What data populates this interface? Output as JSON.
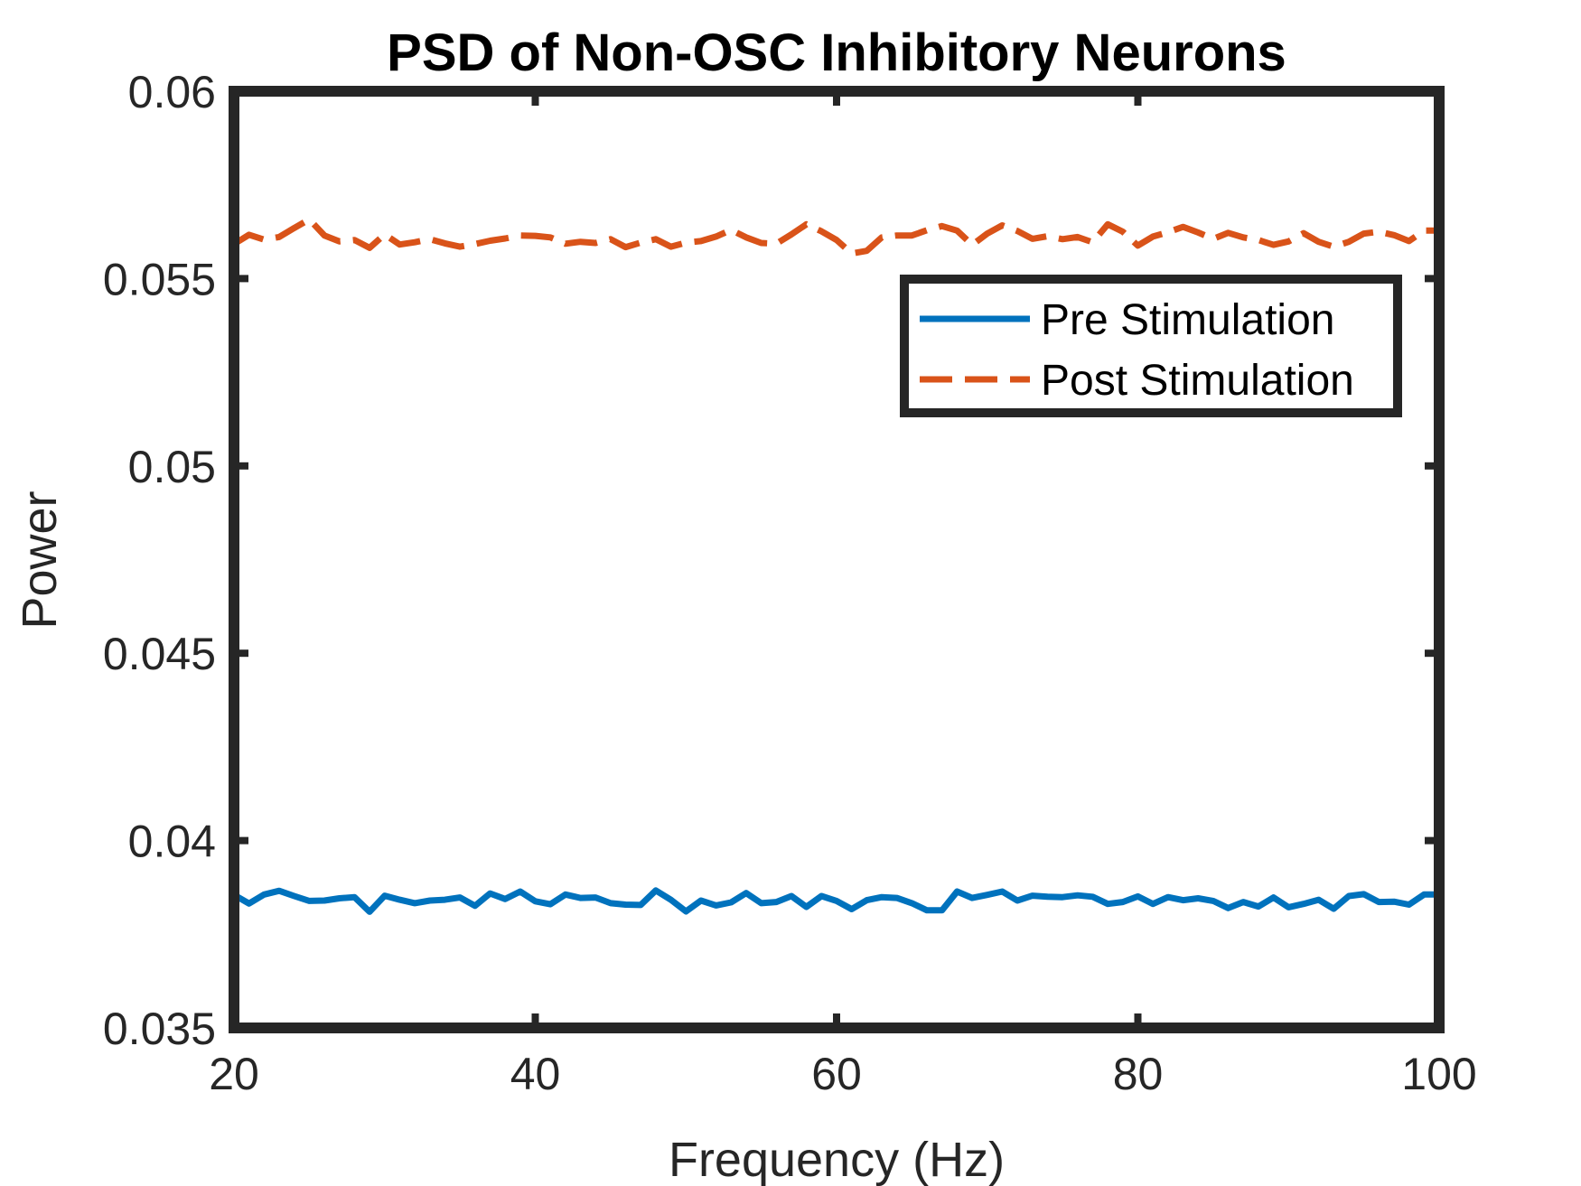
{
  "chart_data": {
    "type": "line",
    "title": "PSD of Non-OSC Inhibitory Neurons",
    "xlabel": "Frequency (Hz)",
    "ylabel": "Power",
    "xlim": [
      20,
      100
    ],
    "ylim": [
      0.035,
      0.06
    ],
    "xticks": [
      20,
      40,
      60,
      80,
      100
    ],
    "xtick_labels": [
      "20",
      "40",
      "60",
      "80",
      "100"
    ],
    "yticks": [
      0.035,
      0.04,
      0.045,
      0.05,
      0.055,
      0.06
    ],
    "ytick_labels": [
      "0.035",
      "0.04",
      "0.045",
      "0.05",
      "0.055",
      "0.06"
    ],
    "grid": false,
    "legend_position": "top-right",
    "x": [
      20,
      21,
      22,
      23,
      24,
      25,
      26,
      27,
      28,
      29,
      30,
      31,
      32,
      33,
      34,
      35,
      36,
      37,
      38,
      39,
      40,
      41,
      42,
      43,
      44,
      45,
      46,
      47,
      48,
      49,
      50,
      51,
      52,
      53,
      54,
      55,
      56,
      57,
      58,
      59,
      60,
      61,
      62,
      63,
      64,
      65,
      66,
      67,
      68,
      69,
      70,
      71,
      72,
      73,
      74,
      75,
      76,
      77,
      78,
      79,
      80,
      81,
      82,
      83,
      84,
      85,
      86,
      87,
      88,
      89,
      90,
      91,
      92,
      93,
      94,
      95,
      96,
      97,
      98,
      99,
      100
    ],
    "series": [
      {
        "name": "Pre Stimulation",
        "color": "#0072BD",
        "style": "solid",
        "values": [
          0.03855,
          0.03832,
          0.03856,
          0.03866,
          0.03852,
          0.03839,
          0.0384,
          0.03846,
          0.03849,
          0.0381,
          0.03853,
          0.03842,
          0.03833,
          0.0384,
          0.03842,
          0.03848,
          0.03826,
          0.03859,
          0.03844,
          0.03864,
          0.03838,
          0.0383,
          0.03856,
          0.03847,
          0.03848,
          0.03833,
          0.03829,
          0.03828,
          0.03867,
          0.03842,
          0.03811,
          0.0384,
          0.03827,
          0.03835,
          0.0386,
          0.03833,
          0.03836,
          0.03852,
          0.03823,
          0.03852,
          0.03839,
          0.03817,
          0.03841,
          0.03849,
          0.03847,
          0.03833,
          0.03814,
          0.03814,
          0.03864,
          0.03847,
          0.03855,
          0.03864,
          0.0384,
          0.03853,
          0.0385,
          0.03849,
          0.03854,
          0.0385,
          0.03831,
          0.03836,
          0.03851,
          0.03831,
          0.03849,
          0.03841,
          0.03846,
          0.03839,
          0.0382,
          0.03836,
          0.03824,
          0.03848,
          0.03822,
          0.03831,
          0.03842,
          0.03818,
          0.03852,
          0.03857,
          0.03836,
          0.03837,
          0.03829,
          0.03856,
          0.03856
        ]
      },
      {
        "name": "Post Stimulation",
        "color": "#D95319",
        "style": "dashed",
        "values": [
          0.05592,
          0.05617,
          0.05604,
          0.05611,
          0.05635,
          0.05658,
          0.05615,
          0.05599,
          0.05603,
          0.05582,
          0.05618,
          0.05591,
          0.05597,
          0.05605,
          0.05594,
          0.05585,
          0.05592,
          0.05601,
          0.05607,
          0.05615,
          0.05614,
          0.0561,
          0.05593,
          0.05598,
          0.05595,
          0.05605,
          0.05584,
          0.05596,
          0.05605,
          0.05585,
          0.05596,
          0.056,
          0.05612,
          0.0563,
          0.0561,
          0.05595,
          0.05593,
          0.05618,
          0.05645,
          0.05626,
          0.05603,
          0.05567,
          0.05574,
          0.0561,
          0.05615,
          0.05615,
          0.05629,
          0.0564,
          0.05628,
          0.0559,
          0.0562,
          0.05642,
          0.05627,
          0.05606,
          0.05613,
          0.05605,
          0.05611,
          0.05597,
          0.05645,
          0.05625,
          0.05588,
          0.05612,
          0.05624,
          0.05638,
          0.05623,
          0.05606,
          0.05622,
          0.0561,
          0.05603,
          0.0559,
          0.05599,
          0.05621,
          0.05598,
          0.05585,
          0.05598,
          0.0562,
          0.05625,
          0.05616,
          0.056,
          0.05628,
          0.05628
        ]
      }
    ]
  }
}
